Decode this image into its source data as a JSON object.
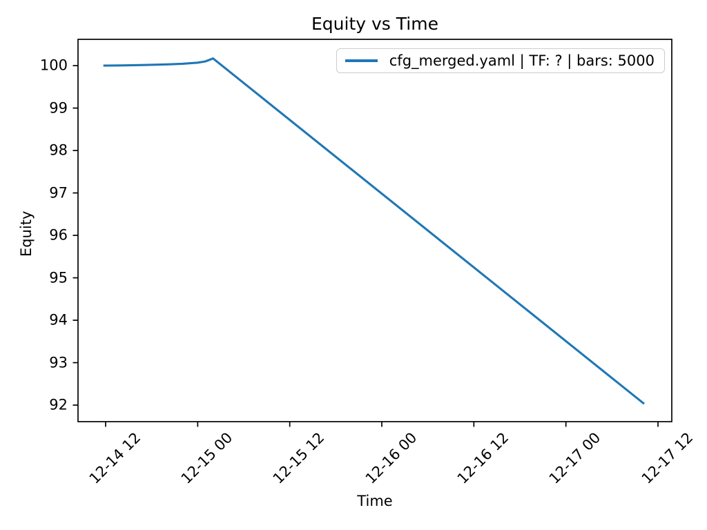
{
  "chart_data": {
    "type": "line",
    "title": "Equity vs Time",
    "xlabel": "Time",
    "ylabel": "Equity",
    "grid": false,
    "legend_position": "upper right",
    "x_unit": "hours since 12-14 00:00",
    "xlim": [
      8.4,
      85.8
    ],
    "ylim": [
      91.61,
      100.62
    ],
    "y_ticks": [
      92,
      93,
      94,
      95,
      96,
      97,
      98,
      99,
      100
    ],
    "x_ticks": [
      {
        "hour": 12,
        "label": "12-14 12"
      },
      {
        "hour": 24,
        "label": "12-15 00"
      },
      {
        "hour": 36,
        "label": "12-15 12"
      },
      {
        "hour": 48,
        "label": "12-16 00"
      },
      {
        "hour": 60,
        "label": "12-16 12"
      },
      {
        "hour": 72,
        "label": "12-17 00"
      },
      {
        "hour": 84,
        "label": "12-17 12"
      }
    ],
    "series": [
      {
        "name": "cfg_merged.yaml | TF: ? | bars: 5000",
        "color": "#1f77b4",
        "points": [
          [
            11.7,
            100.0
          ],
          [
            14.0,
            100.005
          ],
          [
            17.0,
            100.015
          ],
          [
            20.0,
            100.03
          ],
          [
            22.0,
            100.045
          ],
          [
            24.0,
            100.07
          ],
          [
            25.0,
            100.1
          ],
          [
            26.0,
            100.17
          ],
          [
            82.2,
            92.03
          ]
        ]
      }
    ]
  },
  "colors": {
    "line": "#1f77b4",
    "axis": "#000000",
    "text": "#000000",
    "legend_border": "#cccccc",
    "background": "#ffffff"
  }
}
